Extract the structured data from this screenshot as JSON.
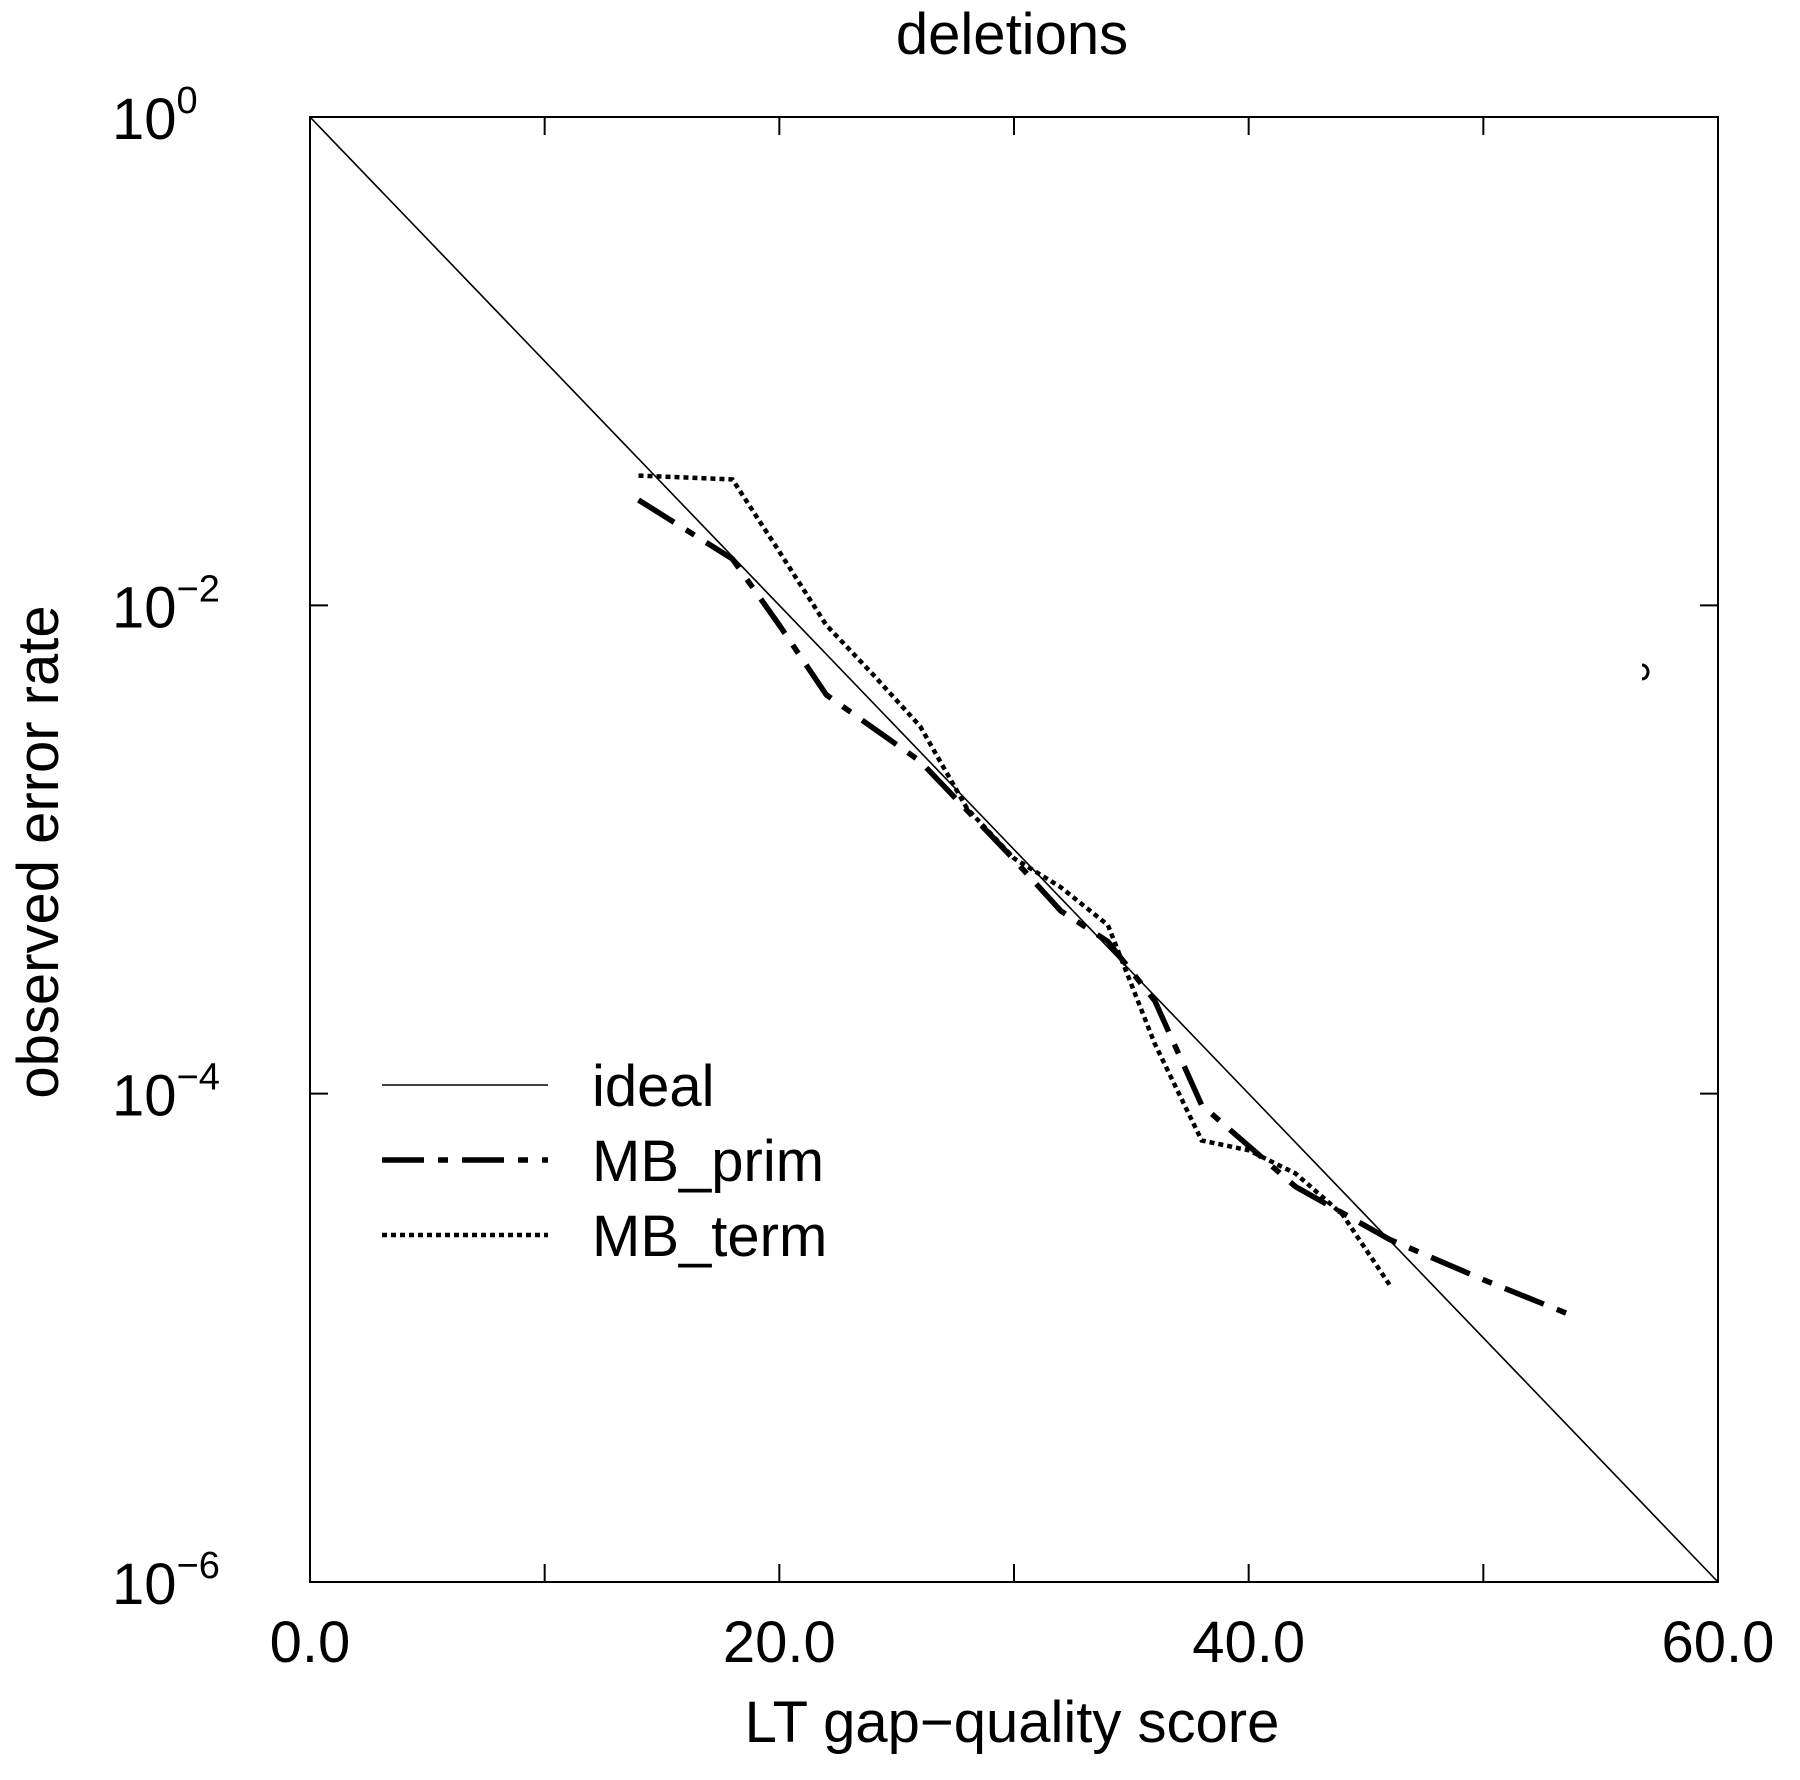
{
  "chart_data": {
    "type": "line",
    "title": "deletions",
    "xlabel": "LT gap−quality score",
    "ylabel": "observed error rate",
    "xlim": [
      0,
      60
    ],
    "ylim": [
      1e-06,
      1
    ],
    "yscale": "log",
    "grid": false,
    "legend_position": "lower-left",
    "x_ticks": [
      {
        "value": 0,
        "label": "0.0"
      },
      {
        "value": 20,
        "label": "20.0"
      },
      {
        "value": 40,
        "label": "40.0"
      },
      {
        "value": 60,
        "label": "60.0"
      }
    ],
    "x_minor_ticks": [
      10,
      30,
      50
    ],
    "y_ticks": [
      {
        "value": 1,
        "base": "10",
        "exp": "0"
      },
      {
        "value": 0.01,
        "base": "10",
        "exp": "−2"
      },
      {
        "value": 0.0001,
        "base": "10",
        "exp": "−4"
      },
      {
        "value": 1e-06,
        "base": "10",
        "exp": "−6"
      }
    ],
    "series": [
      {
        "name": "ideal",
        "style": "solid",
        "color": "#000000",
        "x": [
          0,
          60
        ],
        "y": [
          1,
          1e-06
        ]
      },
      {
        "name": "MB_prim",
        "style": "dashdot",
        "color": "#000000",
        "x": [
          14,
          18,
          20,
          22,
          26,
          30,
          32,
          34,
          36,
          38,
          42,
          46,
          50,
          54
        ],
        "y": [
          0.027,
          0.0155,
          0.0083,
          0.0043,
          0.0023,
          0.00091,
          0.00056,
          0.00042,
          0.00024,
          8.97e-05,
          4.16e-05,
          2.53e-05,
          1.73e-05,
          1.21e-05
        ]
      },
      {
        "name": "MB_term",
        "style": "dotted",
        "color": "#000000",
        "x": [
          14,
          18,
          20,
          22,
          24,
          26,
          28,
          30,
          32,
          34,
          36,
          38,
          40,
          42,
          44,
          46
        ],
        "y": [
          0.034,
          0.0328,
          0.0166,
          0.0083,
          0.0052,
          0.0032,
          0.00147,
          0.00092,
          0.0007,
          0.00049,
          0.00016,
          6.43e-05,
          5.86e-05,
          4.71e-05,
          3.2e-05,
          1.65e-05
        ]
      }
    ]
  }
}
